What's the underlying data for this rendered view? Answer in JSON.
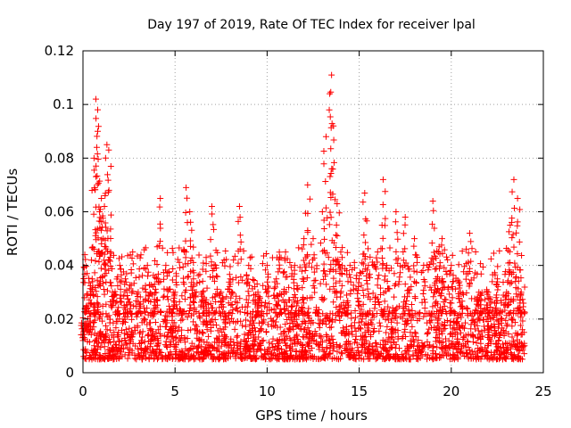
{
  "chart_data": {
    "type": "scatter",
    "title": "Day 197 of 2019, Rate Of TEC Index for receiver lpal",
    "xlabel": "GPS time / hours",
    "ylabel": "ROTI / TECUs",
    "xlim": [
      0,
      25
    ],
    "ylim": [
      0,
      0.12
    ],
    "x_ticks": [
      0,
      5,
      10,
      15,
      20,
      25
    ],
    "x_tick_labels": [
      "0",
      "5",
      "10",
      "15",
      "20",
      "25"
    ],
    "y_ticks": [
      0,
      0.02,
      0.04,
      0.06,
      0.08,
      0.1,
      0.12
    ],
    "y_tick_labels": [
      "0",
      "0.02",
      "0.04",
      "0.06",
      "0.08",
      "0.1",
      "0.12"
    ],
    "grid": true,
    "marker": "plus",
    "colors": {
      "points": "#ff0000",
      "grid": "#a0a0a0",
      "axes": "#000000"
    },
    "series": [
      {
        "name": "ROTI",
        "x": [
          0.0,
          0.1,
          0.2,
          0.3,
          0.5,
          0.6,
          0.7,
          0.8,
          0.8,
          0.9,
          1.0,
          1.1,
          1.2,
          1.3,
          1.4,
          1.5,
          1.6,
          2.0,
          2.3,
          2.7,
          3.0,
          3.5,
          4.0,
          4.2,
          4.5,
          5.0,
          5.5,
          5.6,
          5.8,
          6.0,
          6.5,
          7.0,
          7.2,
          7.5,
          8.0,
          8.5,
          9.0,
          9.5,
          10.0,
          10.5,
          11.0,
          11.5,
          12.0,
          12.2,
          12.5,
          13.0,
          13.2,
          13.4,
          13.5,
          13.6,
          13.8,
          14.0,
          14.5,
          15.0,
          15.3,
          15.5,
          16.0,
          16.3,
          16.5,
          17.0,
          17.5,
          18.0,
          18.5,
          19.0,
          19.3,
          19.5,
          20.0,
          20.5,
          21.0,
          21.5,
          22.0,
          22.5,
          23.0,
          23.2,
          23.4,
          23.6,
          23.8
        ],
        "y": [
          0.012,
          0.044,
          0.025,
          0.015,
          0.035,
          0.08,
          0.102,
          0.098,
          0.09,
          0.06,
          0.065,
          0.05,
          0.066,
          0.085,
          0.083,
          0.045,
          0.03,
          0.04,
          0.035,
          0.045,
          0.03,
          0.04,
          0.035,
          0.065,
          0.04,
          0.03,
          0.045,
          0.069,
          0.06,
          0.035,
          0.03,
          0.062,
          0.04,
          0.03,
          0.035,
          0.062,
          0.04,
          0.03,
          0.04,
          0.035,
          0.045,
          0.04,
          0.05,
          0.07,
          0.05,
          0.06,
          0.088,
          0.104,
          0.111,
          0.092,
          0.063,
          0.045,
          0.04,
          0.035,
          0.067,
          0.04,
          0.045,
          0.072,
          0.04,
          0.06,
          0.058,
          0.05,
          0.04,
          0.064,
          0.045,
          0.05,
          0.04,
          0.03,
          0.052,
          0.03,
          0.03,
          0.035,
          0.03,
          0.055,
          0.072,
          0.065,
          0.03
        ]
      }
    ],
    "background_band": {
      "y_min": 0.005,
      "y_max": 0.022,
      "density": "dense",
      "x_range": [
        0,
        24
      ]
    }
  }
}
